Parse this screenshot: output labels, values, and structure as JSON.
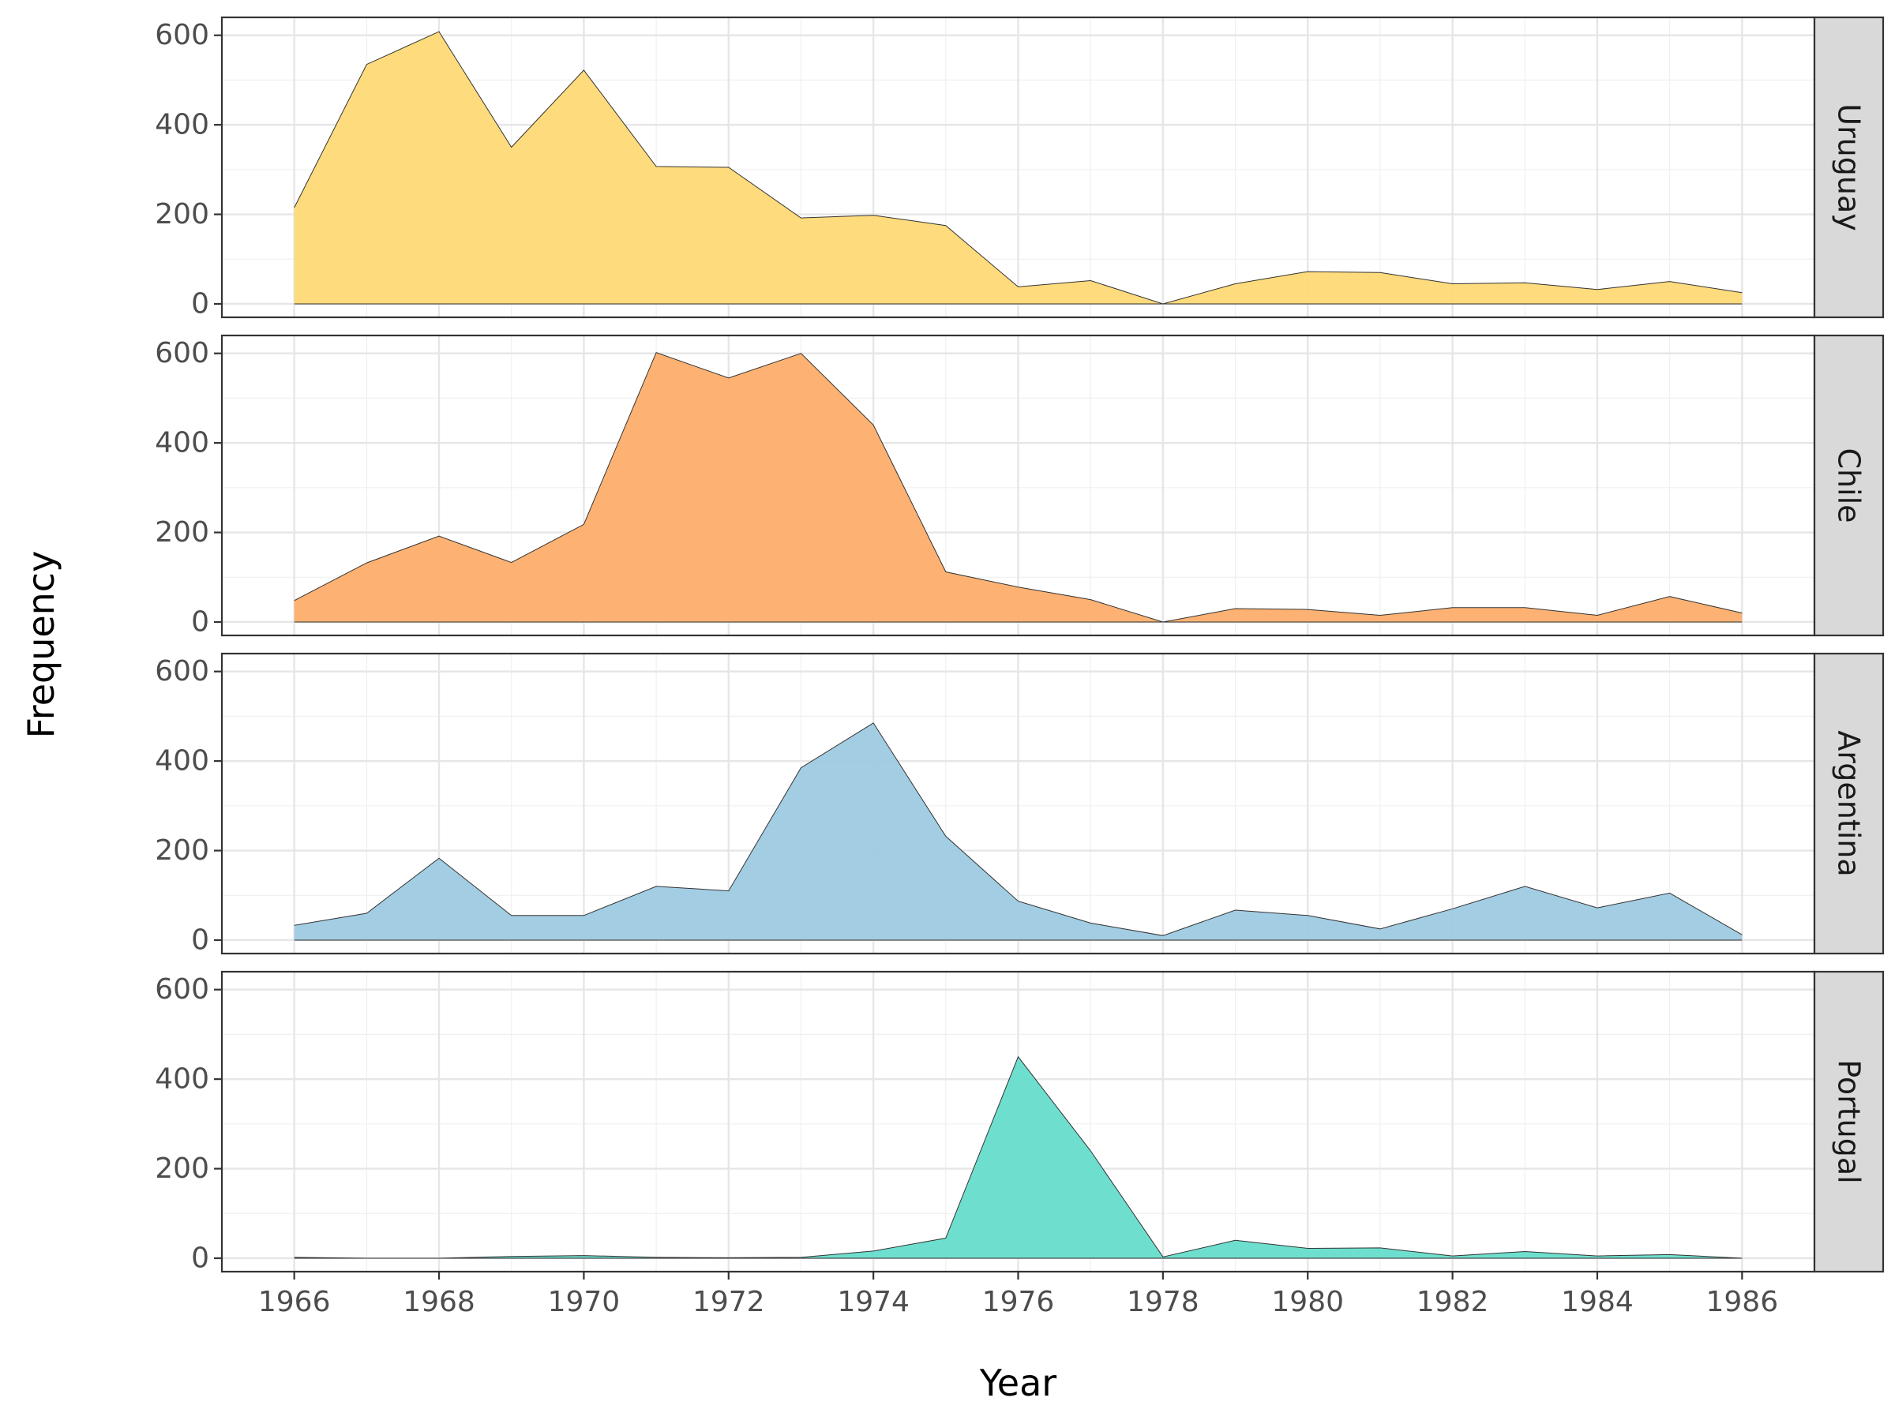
{
  "chart_data": {
    "type": "area",
    "layout": "faceted-vertical",
    "xlabel": "Year",
    "ylabel": "Frequency",
    "x": [
      1966,
      1967,
      1968,
      1969,
      1970,
      1971,
      1972,
      1973,
      1974,
      1975,
      1976,
      1977,
      1978,
      1979,
      1980,
      1981,
      1982,
      1983,
      1984,
      1985,
      1986
    ],
    "x_ticks": [
      "1966",
      "1968",
      "1970",
      "1972",
      "1974",
      "1976",
      "1978",
      "1980",
      "1982",
      "1984",
      "1986"
    ],
    "xlim": [
      1965,
      1987
    ],
    "ylim": [
      -30,
      640
    ],
    "y_ticks": [
      "0",
      "200",
      "400",
      "600"
    ],
    "grid": true,
    "panels": [
      {
        "name": "Uruguay",
        "color": "#FED976",
        "values": [
          215,
          535,
          608,
          350,
          522,
          307,
          305,
          192,
          198,
          175,
          38,
          52,
          0,
          45,
          72,
          70,
          45,
          47,
          32,
          50,
          25
        ]
      },
      {
        "name": "Chile",
        "color": "#FDAE6B",
        "values": [
          48,
          132,
          192,
          133,
          218,
          602,
          545,
          600,
          440,
          112,
          78,
          50,
          0,
          30,
          28,
          15,
          32,
          32,
          15,
          57,
          20
        ]
      },
      {
        "name": "Argentina",
        "color": "#9ECAE1",
        "values": [
          33,
          60,
          183,
          55,
          55,
          120,
          110,
          385,
          485,
          232,
          87,
          38,
          10,
          67,
          55,
          25,
          70,
          120,
          72,
          105,
          12
        ]
      },
      {
        "name": "Portugal",
        "color": "#66DDCB",
        "values": [
          2,
          0,
          0,
          4,
          6,
          2,
          1,
          2,
          16,
          45,
          450,
          240,
          3,
          40,
          22,
          23,
          5,
          15,
          5,
          8,
          0
        ]
      }
    ]
  }
}
